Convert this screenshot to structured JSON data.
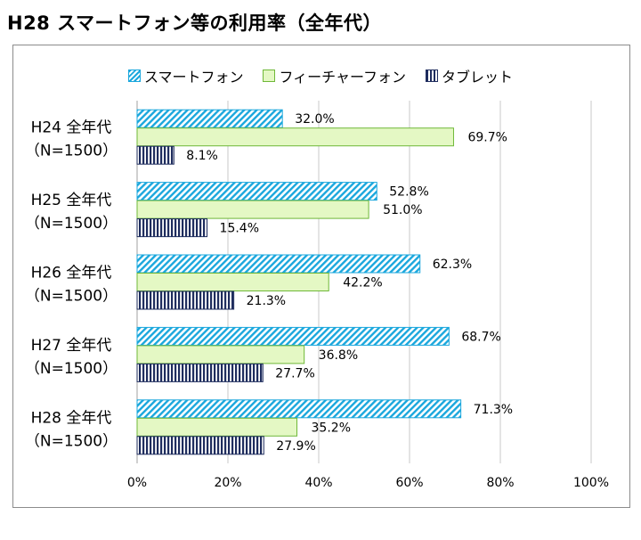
{
  "title": "H28 スマートフォン等の利用率（全年代）",
  "colors": {
    "smartphone": "#1aa7dd",
    "feature_phone_fill": "#e4f8c4",
    "feature_phone_border": "#6fb838",
    "tablet": "#1f2d5e",
    "grid": "#c8c8c8"
  },
  "chart_data": {
    "type": "bar",
    "orientation": "horizontal",
    "categories": [
      [
        "H24 全年代",
        "（N=1500）"
      ],
      [
        "H25 全年代",
        "（N=1500）"
      ],
      [
        "H26 全年代",
        "（N=1500）"
      ],
      [
        "H27 全年代",
        "（N=1500）"
      ],
      [
        "H28 全年代",
        "（N=1500）"
      ]
    ],
    "series": [
      {
        "name": "スマートフォン",
        "values": [
          32.0,
          52.8,
          62.3,
          68.7,
          71.3
        ],
        "labels": [
          "32.0%",
          "52.8%",
          "62.3%",
          "68.7%",
          "71.3%"
        ],
        "pattern": "diagonal-hatch"
      },
      {
        "name": "フィーチャーフォン",
        "values": [
          69.7,
          51.0,
          42.2,
          36.8,
          35.2
        ],
        "labels": [
          "69.7%",
          "51.0%",
          "42.2%",
          "36.8%",
          "35.2%"
        ],
        "pattern": "solid"
      },
      {
        "name": "タブレット",
        "values": [
          8.1,
          15.4,
          21.3,
          27.7,
          27.9
        ],
        "labels": [
          "8.1%",
          "15.4%",
          "21.3%",
          "27.7%",
          "27.9%"
        ],
        "pattern": "vertical-stripes"
      }
    ],
    "xlim": [
      0,
      100
    ],
    "xticks": [
      0,
      20,
      40,
      60,
      80,
      100
    ],
    "xtick_labels": [
      "0%",
      "20%",
      "40%",
      "60%",
      "80%",
      "100%"
    ],
    "grid": true,
    "legend_position": "top"
  }
}
